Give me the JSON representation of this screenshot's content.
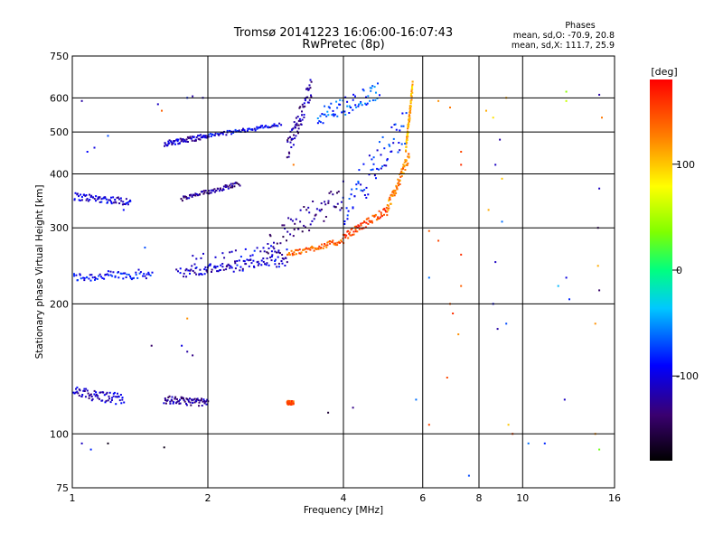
{
  "chart_data": {
    "type": "scatter",
    "title": "Tromsø 20141223 16:06:00-16:07:43",
    "subtitle": "RwPretec (8p)",
    "legend_lines": [
      "Phases",
      "mean, sd,O: -70.9, 20.8",
      "mean, sd,X: 111.7, 25.9"
    ],
    "xlabel": "Frequency [MHz]",
    "ylabel": "Stationary phase Virtual Height [km]",
    "x_scale": "log",
    "y_scale": "log",
    "xlim": [
      1,
      16
    ],
    "ylim": [
      75,
      750
    ],
    "x_ticks": [
      1,
      2,
      4,
      6,
      8,
      10,
      16
    ],
    "y_ticks": [
      75,
      100,
      200,
      300,
      400,
      500,
      600,
      750
    ],
    "x_grid": [
      2,
      4,
      6,
      8,
      10
    ],
    "y_grid": [
      100,
      200,
      300,
      400,
      500,
      600
    ],
    "grid": true,
    "colorbar": {
      "label": "[deg]",
      "min": -180,
      "max": 180,
      "ticks": [
        100,
        0,
        -100
      ]
    },
    "traces": [
      {
        "name": "",
        "f": [
          1.0,
          1.5
        ],
        "h": [
          230,
          235
        ],
        "phase": -90,
        "jitter": 0.025
      },
      {
        "name": "",
        "f": [
          1.0,
          1.35
        ],
        "h": [
          355,
          345
        ],
        "phase": -105,
        "jitter": 0.02
      },
      {
        "name": "",
        "f": [
          1.0,
          1.3
        ],
        "h": [
          125,
          120
        ],
        "phase": -110,
        "jitter": 0.03
      },
      {
        "name": "",
        "f": [
          1.6,
          2.0
        ],
        "h": [
          470,
          490
        ],
        "phase": -110,
        "jitter": 0.015
      },
      {
        "name": "",
        "f": [
          2.0,
          2.9
        ],
        "h": [
          490,
          520
        ],
        "phase": -95,
        "jitter": 0.01
      },
      {
        "name": "",
        "f": [
          1.75,
          2.35
        ],
        "h": [
          350,
          380
        ],
        "phase": -125,
        "jitter": 0.012
      },
      {
        "name": "",
        "f": [
          1.6,
          2.0
        ],
        "h": [
          120,
          118
        ],
        "phase": -125,
        "jitter": 0.02
      },
      {
        "name": "",
        "f": [
          1.8,
          3.0
        ],
        "h": [
          245,
          260
        ],
        "phase": -100,
        "jitter": 0.06
      },
      {
        "name": "",
        "f": [
          1.7,
          3.0
        ],
        "h": [
          235,
          255
        ],
        "phase": -110,
        "jitter": 0.025
      },
      {
        "name": "",
        "f": [
          3.0,
          4.0
        ],
        "h": [
          260,
          280
        ],
        "phase": 140,
        "jitter": 0.015
      },
      {
        "name": "",
        "f": [
          4.0,
          5.0
        ],
        "h": [
          285,
          330
        ],
        "phase": 150,
        "jitter": 0.02
      },
      {
        "name": "",
        "f": [
          5.0,
          5.6
        ],
        "h": [
          330,
          440
        ],
        "phase": 125,
        "jitter": 0.03
      },
      {
        "name": "",
        "f": [
          5.5,
          5.7
        ],
        "h": [
          450,
          640
        ],
        "phase": 110,
        "jitter": 0.03
      },
      {
        "name": "",
        "f": [
          3.0,
          3.4
        ],
        "h": [
          450,
          640
        ],
        "phase": -120,
        "jitter": 0.06
      },
      {
        "name": "",
        "f": [
          3.5,
          4.8
        ],
        "h": [
          540,
          620
        ],
        "phase": -70,
        "jitter": 0.05
      },
      {
        "name": "",
        "f": [
          2.7,
          4.0
        ],
        "h": [
          270,
          360
        ],
        "phase": -130,
        "jitter": 0.08
      },
      {
        "name": "",
        "f": [
          4.0,
          5.5
        ],
        "h": [
          330,
          520
        ],
        "phase": -85,
        "jitter": 0.1
      },
      {
        "name": "",
        "f": [
          3.0,
          3.1
        ],
        "h": [
          118,
          118
        ],
        "phase": 150,
        "jitter": 0.01
      }
    ],
    "scatter_points": [
      {
        "f": 6.2,
        "h": 230,
        "phase": -60
      },
      {
        "f": 6.5,
        "h": 590,
        "phase": 120
      },
      {
        "f": 6.9,
        "h": 570,
        "phase": 130
      },
      {
        "f": 7.3,
        "h": 450,
        "phase": 150
      },
      {
        "f": 7.3,
        "h": 420,
        "phase": 160
      },
      {
        "f": 7.0,
        "h": 190,
        "phase": 160
      },
      {
        "f": 6.9,
        "h": 200,
        "phase": 140
      },
      {
        "f": 6.8,
        "h": 135,
        "phase": 150
      },
      {
        "f": 7.2,
        "h": 170,
        "phase": 120
      },
      {
        "f": 6.2,
        "h": 105,
        "phase": 150
      },
      {
        "f": 8.3,
        "h": 560,
        "phase": 110
      },
      {
        "f": 8.6,
        "h": 540,
        "phase": 90
      },
      {
        "f": 8.9,
        "h": 480,
        "phase": -120
      },
      {
        "f": 8.7,
        "h": 420,
        "phase": -110
      },
      {
        "f": 9.0,
        "h": 390,
        "phase": 100
      },
      {
        "f": 9.2,
        "h": 600,
        "phase": 110
      },
      {
        "f": 8.4,
        "h": 330,
        "phase": 110
      },
      {
        "f": 8.7,
        "h": 250,
        "phase": -110
      },
      {
        "f": 9.0,
        "h": 310,
        "phase": -60
      },
      {
        "f": 8.6,
        "h": 200,
        "phase": -90
      },
      {
        "f": 9.2,
        "h": 180,
        "phase": -70
      },
      {
        "f": 8.8,
        "h": 175,
        "phase": -120
      },
      {
        "f": 9.5,
        "h": 100,
        "phase": 150
      },
      {
        "f": 9.3,
        "h": 105,
        "phase": 100
      },
      {
        "f": 12.5,
        "h": 620,
        "phase": 40
      },
      {
        "f": 12.5,
        "h": 590,
        "phase": 60
      },
      {
        "f": 14.8,
        "h": 610,
        "phase": -120
      },
      {
        "f": 15.0,
        "h": 540,
        "phase": 130
      },
      {
        "f": 14.8,
        "h": 370,
        "phase": -110
      },
      {
        "f": 14.7,
        "h": 300,
        "phase": -140
      },
      {
        "f": 14.7,
        "h": 245,
        "phase": 110
      },
      {
        "f": 12.5,
        "h": 230,
        "phase": -100
      },
      {
        "f": 12.0,
        "h": 220,
        "phase": -40
      },
      {
        "f": 12.7,
        "h": 205,
        "phase": -80
      },
      {
        "f": 14.8,
        "h": 215,
        "phase": -140
      },
      {
        "f": 14.5,
        "h": 180,
        "phase": 120
      },
      {
        "f": 12.4,
        "h": 120,
        "phase": -110
      },
      {
        "f": 14.5,
        "h": 100,
        "phase": 120
      },
      {
        "f": 11.2,
        "h": 95,
        "phase": -80
      },
      {
        "f": 14.8,
        "h": 92,
        "phase": 30
      },
      {
        "f": 7.6,
        "h": 80,
        "phase": -70
      },
      {
        "f": 10.3,
        "h": 95,
        "phase": -60
      },
      {
        "f": 5.8,
        "h": 120,
        "phase": -60
      },
      {
        "f": 4.2,
        "h": 115,
        "phase": -130
      },
      {
        "f": 1.2,
        "h": 95,
        "phase": -170
      },
      {
        "f": 1.05,
        "h": 95,
        "phase": -110
      },
      {
        "f": 1.1,
        "h": 92,
        "phase": -80
      },
      {
        "f": 1.6,
        "h": 93,
        "phase": -170
      },
      {
        "f": 1.05,
        "h": 590,
        "phase": -120
      },
      {
        "f": 1.08,
        "h": 450,
        "phase": -90
      },
      {
        "f": 1.2,
        "h": 490,
        "phase": -70
      },
      {
        "f": 1.12,
        "h": 460,
        "phase": -100
      },
      {
        "f": 1.55,
        "h": 580,
        "phase": -110
      },
      {
        "f": 1.58,
        "h": 560,
        "phase": 140
      },
      {
        "f": 1.8,
        "h": 600,
        "phase": -80
      },
      {
        "f": 1.85,
        "h": 605,
        "phase": -120
      },
      {
        "f": 1.95,
        "h": 600,
        "phase": -110
      },
      {
        "f": 1.5,
        "h": 160,
        "phase": -140
      },
      {
        "f": 1.75,
        "h": 160,
        "phase": -100
      },
      {
        "f": 1.8,
        "h": 155,
        "phase": -120
      },
      {
        "f": 1.85,
        "h": 152,
        "phase": -130
      },
      {
        "f": 1.3,
        "h": 330,
        "phase": -90
      },
      {
        "f": 1.45,
        "h": 270,
        "phase": -70
      },
      {
        "f": 3.1,
        "h": 420,
        "phase": 130
      },
      {
        "f": 3.7,
        "h": 112,
        "phase": -160
      },
      {
        "f": 1.8,
        "h": 185,
        "phase": 120
      },
      {
        "f": 6.2,
        "h": 295,
        "phase": 140
      },
      {
        "f": 6.5,
        "h": 280,
        "phase": 150
      },
      {
        "f": 7.3,
        "h": 260,
        "phase": 160
      },
      {
        "f": 7.3,
        "h": 220,
        "phase": 140
      }
    ]
  }
}
